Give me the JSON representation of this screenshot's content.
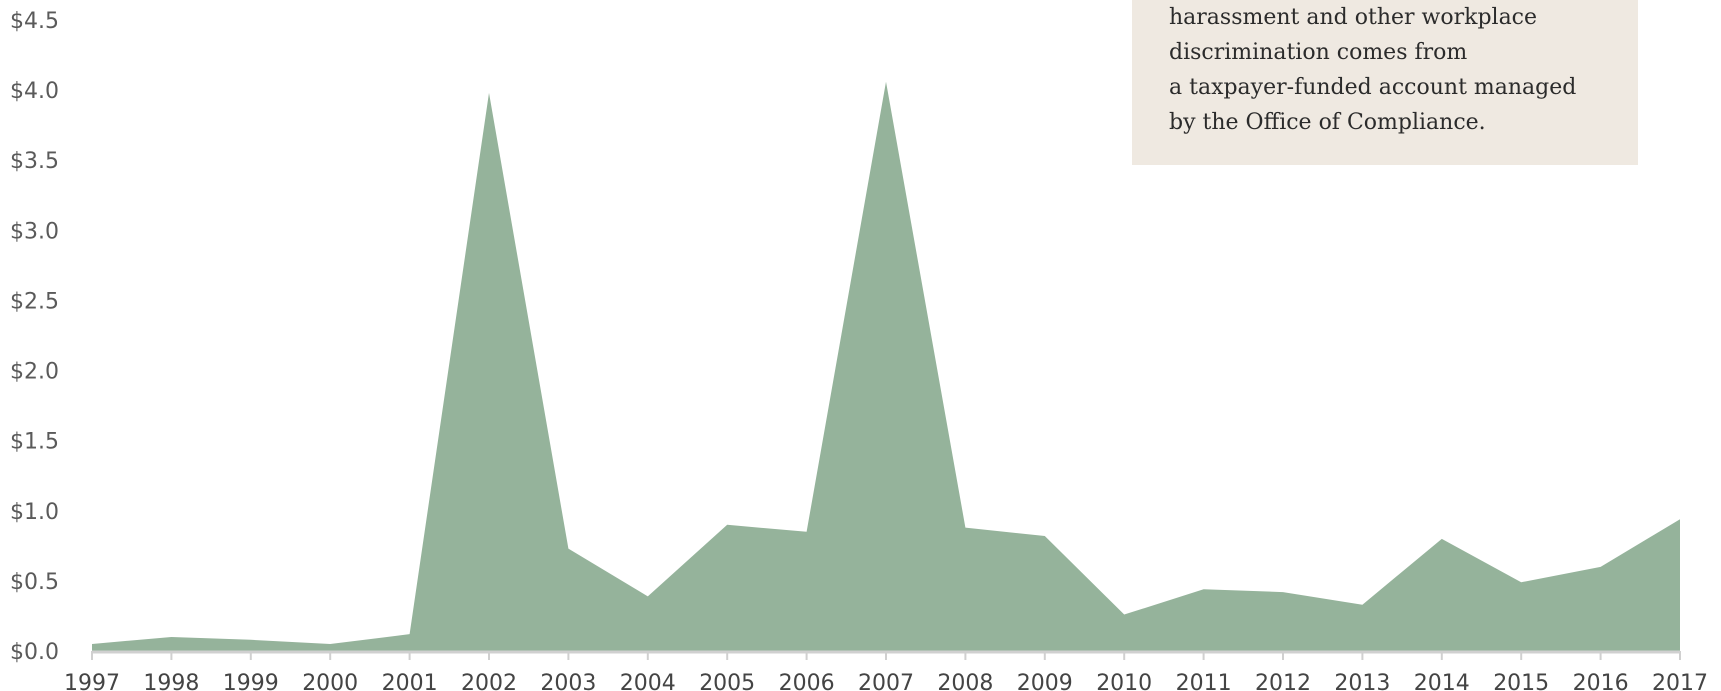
{
  "annotation": {
    "lines": [
      "harassment and other workplace",
      "discrimination comes from",
      "a taxpayer-funded account managed",
      "by the Office of Compliance."
    ]
  },
  "chart_data": {
    "type": "area",
    "title": "",
    "xlabel": "",
    "ylabel": "",
    "x": [
      1997,
      1998,
      1999,
      2000,
      2001,
      2002,
      2003,
      2004,
      2005,
      2006,
      2007,
      2008,
      2009,
      2010,
      2011,
      2012,
      2013,
      2014,
      2015,
      2016,
      2017
    ],
    "values": [
      0.05,
      0.1,
      0.08,
      0.05,
      0.12,
      3.98,
      0.73,
      0.39,
      0.9,
      0.85,
      4.06,
      0.88,
      0.82,
      0.26,
      0.44,
      0.42,
      0.33,
      0.8,
      0.49,
      0.6,
      0.94
    ],
    "ylim": [
      0,
      4.5
    ],
    "yticks": [
      0.0,
      0.5,
      1.0,
      1.5,
      2.0,
      2.5,
      3.0,
      3.5,
      4.0,
      4.5
    ],
    "ytick_labels": [
      "$0.0",
      "$0.5",
      "$1.0",
      "$1.5",
      "$2.0",
      "$2.5",
      "$3.0",
      "$3.5",
      "$4.0",
      "$4.5"
    ],
    "xtick_labels": [
      "1997",
      "1998",
      "1999",
      "2000",
      "2001",
      "2002",
      "2003",
      "2004",
      "2005",
      "2006",
      "2007",
      "2008",
      "2009",
      "2010",
      "2011",
      "2012",
      "2013",
      "2014",
      "2015",
      "2016",
      "2017"
    ],
    "fill_color": "#95b39b",
    "axis_color": "#d0d0d0",
    "grid": false
  }
}
